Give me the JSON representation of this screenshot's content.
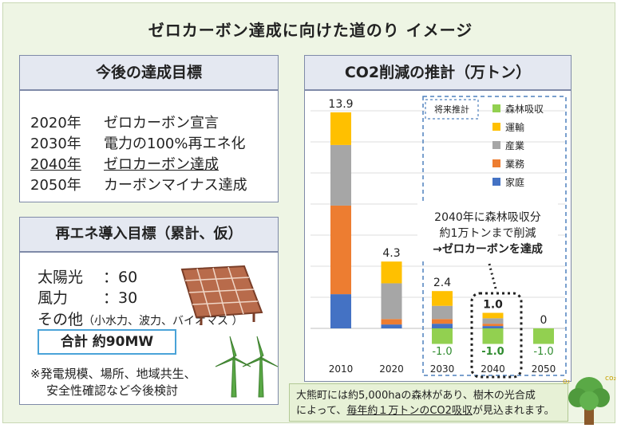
{
  "title": "ゼロカーボン達成に向けた道のり イメージ",
  "goals": {
    "heading": "今後の達成目標",
    "items": [
      {
        "year": "2020年",
        "text": "ゼロカーボン宣言"
      },
      {
        "year": "2030年",
        "text": "電力の100%再エネ化"
      },
      {
        "year": "2040年",
        "text": "ゼロカーボン達成"
      },
      {
        "year": "2050年",
        "text": "カーボンマイナス達成"
      }
    ]
  },
  "renewables": {
    "heading": "再エネ導入目標（累計、仮）",
    "solar_label": "太陽光",
    "solar_value": "：60",
    "wind_label": "風力",
    "wind_value": "：30",
    "other_label": "その他",
    "other_detail": "（小水力、波力、バイオマス ）",
    "total": "合計 約90MW",
    "note_line1": "※発電規模、場所、地域共生、",
    "note_line2": "安全性確認など今後検討"
  },
  "chart_title": "CO2削減の推計（万トン）",
  "future_label": "将来推計",
  "callout": {
    "line1": "2040年に森林吸収分",
    "line2": "約1万トンまで削減",
    "line3": "→ゼロカーボンを達成"
  },
  "bottom_note": {
    "part1": "大熊町には約5,000haの森林があり、樹木の光合成",
    "part2": "によって、",
    "part3": "毎年約１万トンのCO2吸収",
    "part4": "が見込まれます。"
  },
  "colors": {
    "forest": "#92d050",
    "transport": "#ffc000",
    "industry": "#a6a6a6",
    "business": "#ed7d31",
    "household": "#4472c4",
    "goal_green": "#2e8b2e",
    "dash": "#4f81bd"
  },
  "chart_data": {
    "type": "bar",
    "stacked": true,
    "title": "CO2削減の推計（万トン）",
    "categories": [
      "2010",
      "2020",
      "2030",
      "2040",
      "2050"
    ],
    "series": [
      {
        "name": "家庭",
        "color": "#4472c4",
        "values": [
          2.2,
          0.25,
          0.3,
          0.15,
          0
        ]
      },
      {
        "name": "業務",
        "color": "#ed7d31",
        "values": [
          5.7,
          0.35,
          0.3,
          0.15,
          0
        ]
      },
      {
        "name": "産業",
        "color": "#a6a6a6",
        "values": [
          3.9,
          2.3,
          0.85,
          0.35,
          0
        ]
      },
      {
        "name": "運輸",
        "color": "#ffc000",
        "values": [
          2.1,
          1.4,
          0.95,
          0.35,
          0
        ]
      },
      {
        "name": "森林吸収",
        "color": "#92d050",
        "values": [
          0,
          0,
          -1.0,
          -1.0,
          -1.0
        ]
      }
    ],
    "totals": [
      "13.9",
      "4.3",
      "2.4",
      "1.0",
      "0"
    ],
    "negative_labels": [
      "",
      "",
      "-1.0",
      "-1.0",
      "-1.0"
    ],
    "legend": [
      "森林吸収",
      "運輸",
      "産業",
      "業務",
      "家庭"
    ],
    "legend_position": "top-right",
    "ylim": [
      -2.5,
      14.5
    ],
    "grid": true
  }
}
